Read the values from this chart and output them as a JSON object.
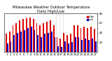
{
  "title": "Milwaukee Weather Outdoor Temperature",
  "subtitle": "Daily High/Low",
  "x_labels": [
    "1",
    "2",
    "3",
    "4",
    "5",
    "6",
    "7",
    "8",
    "9",
    "10",
    "11",
    "12",
    "13",
    "14",
    "15",
    "16",
    "17",
    "18",
    "19",
    "20",
    "21",
    "22",
    "23",
    "24",
    "25",
    "26",
    "27"
  ],
  "highs": [
    38,
    42,
    55,
    60,
    65,
    68,
    70,
    72,
    68,
    60,
    55,
    60,
    62,
    65,
    55,
    30,
    28,
    40,
    35,
    38,
    55,
    55,
    50,
    52,
    50,
    52,
    48
  ],
  "lows": [
    18,
    22,
    35,
    40,
    42,
    45,
    50,
    52,
    45,
    35,
    30,
    38,
    40,
    42,
    30,
    12,
    10,
    22,
    18,
    20,
    30,
    30,
    25,
    28,
    25,
    28,
    22
  ],
  "high_color": "#dd0000",
  "low_color": "#0000cc",
  "bg_color": "#ffffff",
  "plot_bg": "#ffffff",
  "ylim_min": 0,
  "ylim_max": 80,
  "yticks": [
    20,
    40,
    60,
    80
  ],
  "dotted_lines": [
    14.5,
    15.5,
    16.5
  ],
  "legend_high_label": "High",
  "legend_low_label": "Low",
  "title_fontsize": 3.8,
  "tick_fontsize": 2.8,
  "legend_fontsize": 2.5
}
